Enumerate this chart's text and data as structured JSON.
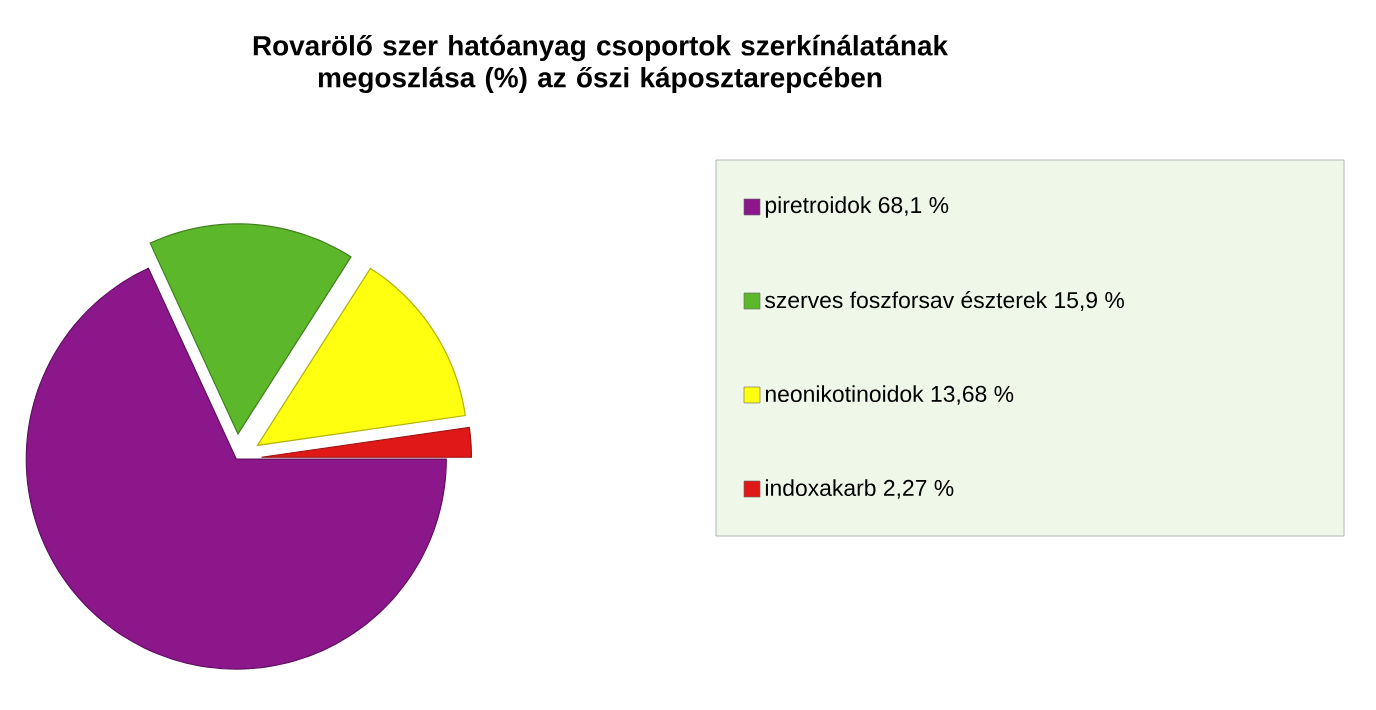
{
  "chart_data": {
    "type": "pie",
    "title": "Rovarölő szer hatóanyag csoportok szerkínálatának megoszlása (%) az őszi káposztarepcében",
    "categories": [
      "piretroidok 68,1 %",
      "szerves foszforsav észterek 15,9 %",
      "neonikotinoidok 13,68 %",
      "indoxakarb 2,27 %"
    ],
    "values": [
      68.1,
      15.9,
      13.68,
      2.27
    ],
    "colors": [
      "#8b178b",
      "#5cb82a",
      "#ffff10",
      "#e01818"
    ],
    "legend": "right"
  }
}
